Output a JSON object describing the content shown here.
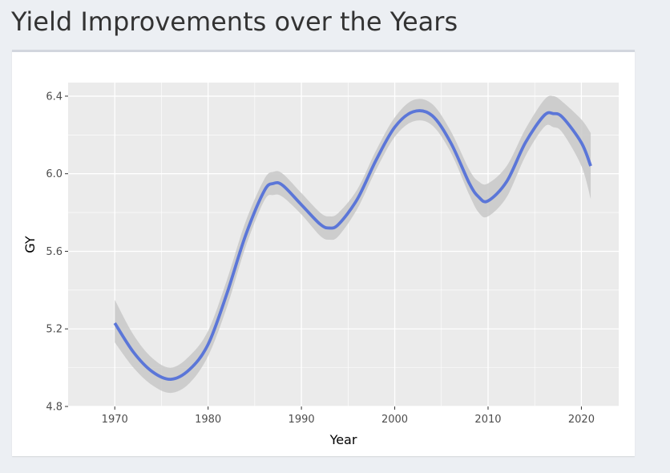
{
  "page": {
    "title": "Yield Improvements over the Years"
  },
  "colors": {
    "background": "#eceff3",
    "panel": "#ebebeb",
    "grid": "#ffffff",
    "line": "#5b76d8",
    "ribbon": "#c8c8c8"
  },
  "chart_data": {
    "type": "line",
    "title": "",
    "xlabel": "Year",
    "ylabel": "GY",
    "xlim": [
      1965,
      2024
    ],
    "ylim": [
      4.8,
      6.47
    ],
    "x_ticks": [
      1970,
      1980,
      1990,
      2000,
      2010,
      2020
    ],
    "x_tick_labels": [
      "1970",
      "1980",
      "1990",
      "2000",
      "2010",
      "2020"
    ],
    "y_ticks": [
      4.8,
      5.2,
      5.6,
      6.0,
      6.4
    ],
    "y_tick_labels": [
      "4.8",
      "5.2",
      "5.6",
      "6.0",
      "6.4"
    ],
    "grid": true,
    "legend": "none",
    "smoothing_ribbon": true,
    "series": [
      {
        "x": [
          1970,
          1972,
          1974,
          1976,
          1978,
          1980,
          1982,
          1984,
          1986,
          1987,
          1988,
          1990,
          1992,
          1993,
          1994,
          1996,
          1998,
          2000,
          2002,
          2004,
          2006,
          2008,
          2009,
          2010,
          2012,
          2014,
          2016,
          2017,
          2018,
          2020,
          2021
        ],
        "y": [
          5.23,
          5.08,
          4.98,
          4.94,
          4.99,
          5.12,
          5.38,
          5.68,
          5.91,
          5.95,
          5.94,
          5.84,
          5.74,
          5.72,
          5.74,
          5.87,
          6.07,
          6.24,
          6.32,
          6.3,
          6.16,
          5.95,
          5.88,
          5.86,
          5.96,
          6.16,
          6.3,
          6.31,
          6.29,
          6.16,
          6.04
        ],
        "lower": [
          5.13,
          5.0,
          4.91,
          4.87,
          4.92,
          5.06,
          5.31,
          5.62,
          5.86,
          5.89,
          5.88,
          5.79,
          5.68,
          5.66,
          5.68,
          5.82,
          6.02,
          6.19,
          6.27,
          6.25,
          6.11,
          5.89,
          5.8,
          5.78,
          5.88,
          6.09,
          6.24,
          6.24,
          6.21,
          6.04,
          5.87
        ],
        "upper": [
          5.35,
          5.17,
          5.05,
          5.0,
          5.06,
          5.19,
          5.45,
          5.75,
          5.97,
          6.01,
          6.0,
          5.9,
          5.8,
          5.78,
          5.8,
          5.92,
          6.12,
          6.29,
          6.38,
          6.36,
          6.22,
          6.02,
          5.96,
          5.95,
          6.04,
          6.23,
          6.38,
          6.4,
          6.37,
          6.28,
          6.21
        ]
      }
    ]
  }
}
